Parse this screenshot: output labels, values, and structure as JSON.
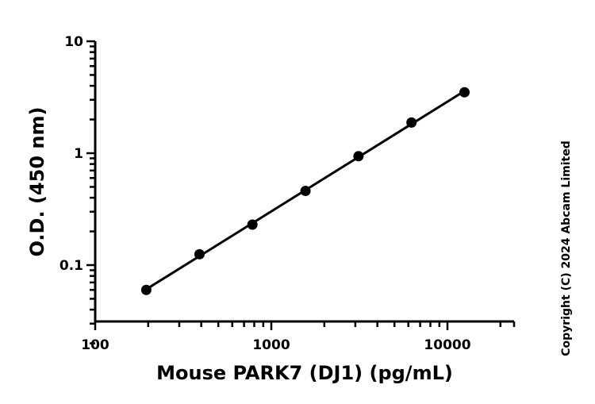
{
  "chart_data": {
    "type": "scatter",
    "x_scale": "log",
    "y_scale": "log",
    "xlim": [
      100,
      25000
    ],
    "ylim": [
      0.02,
      10
    ],
    "xlabel": "Mouse PARK7 (DJ1) (pg/mL)",
    "ylabel": "O.D. (450 nm)",
    "x_tick_labels": [
      "100",
      "1000",
      "10000"
    ],
    "y_tick_labels": [
      "0.1",
      "1",
      "10"
    ],
    "grid": false,
    "fit_line": true,
    "series": [
      {
        "x": [
          195,
          391,
          781,
          1563,
          3125,
          6250,
          12500
        ],
        "y": [
          0.06,
          0.125,
          0.23,
          0.46,
          0.94,
          1.88,
          3.5
        ]
      }
    ],
    "marker_color": "#000000",
    "line_color": "#000000"
  },
  "copyright": "Copyright (C) 2024 Abcam Limited"
}
